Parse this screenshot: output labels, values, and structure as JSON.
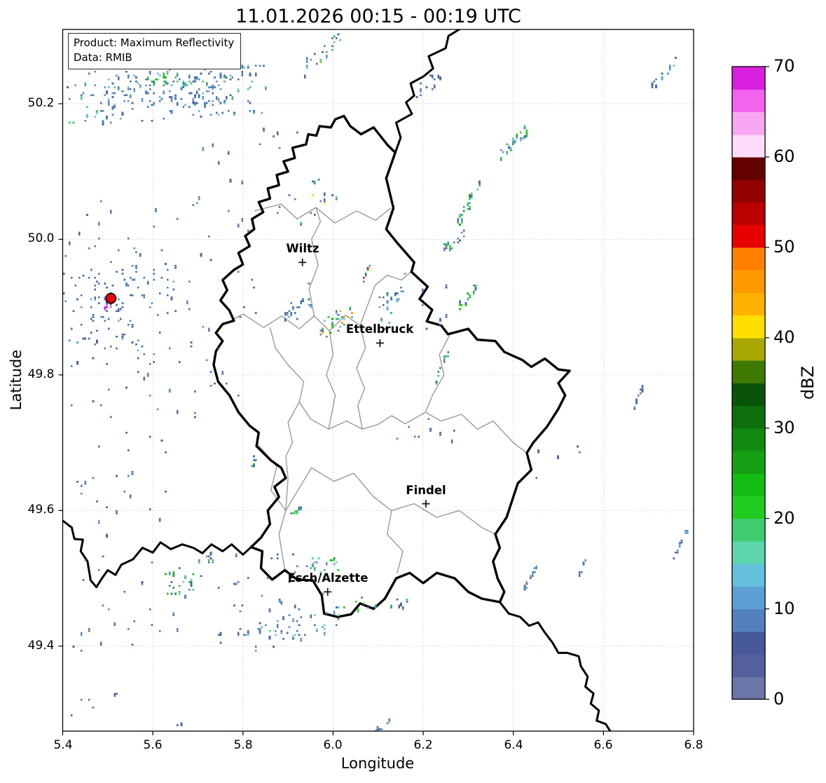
{
  "header": {
    "title": "11.01.2026 00:15 - 00:19 UTC"
  },
  "annotation": {
    "line1": "Product: Maximum Reflectivity",
    "line2": "Data: RMIB"
  },
  "axes": {
    "xlabel": "Longitude",
    "ylabel": "Latitude",
    "x_ticks": [
      "5.4",
      "5.6",
      "5.8",
      "6.0",
      "6.2",
      "6.4",
      "6.6",
      "6.8"
    ],
    "y_ticks": [
      "50.2",
      "50.0",
      "49.8",
      "49.6",
      "49.4"
    ],
    "extent": {
      "lon_min": 5.4,
      "lon_max": 6.8,
      "lat_min": 49.2746,
      "lat_max": 50.3096
    },
    "grid_color": "#c9c9c9"
  },
  "colorbar": {
    "label": "dBZ",
    "ticks": [
      "0",
      "10",
      "20",
      "30",
      "40",
      "50",
      "60",
      "70"
    ],
    "min": 0,
    "max": 70,
    "step": 2.5,
    "colors_bottom_to_top": [
      "#6b76a8",
      "#545f9e",
      "#47599b",
      "#5381bd",
      "#5c9fd2",
      "#65c0de",
      "#5dd6ab",
      "#3fcb6e",
      "#20cc20",
      "#12bc12",
      "#16a016",
      "#128a12",
      "#0c6e0c",
      "#0a540a",
      "#3e7a00",
      "#a8a804",
      "#ffdf00",
      "#ffb300",
      "#ff9900",
      "#ff8000",
      "#e60000",
      "#bb0000",
      "#920000",
      "#650000",
      "#fcdcf9",
      "#f8a8f2",
      "#f263ee",
      "#d81fde"
    ]
  },
  "cities": [
    {
      "name": "Wiltz",
      "lon": 5.932,
      "lat": 49.966
    },
    {
      "name": "Ettelbruck",
      "lon": 6.104,
      "lat": 49.847
    },
    {
      "name": "Findel",
      "lon": 6.206,
      "lat": 49.61
    },
    {
      "name": "Esch/Alzette",
      "lon": 5.988,
      "lat": 49.48
    }
  ],
  "radar_site": {
    "lon": 5.507,
    "lat": 49.913,
    "marker_color": "#e8000b",
    "edge_color": "#000000"
  },
  "chart_data": {
    "type": "heatmap",
    "description": "Weather radar maximum reflectivity (dBZ) over Luxembourg region; scattered light echoes 0-25 dBZ, isolated cells to 50 dBZ, ground clutter rings around radar site at 5.507E 49.913N",
    "value_unit": "dBZ",
    "value_range": [
      0,
      70
    ],
    "palette": {
      "b": "#4a6fad",
      "B": "#5588c0",
      "s": "#53639d",
      "L": "#5ea7d4",
      "c": "#64c0dd",
      "t": "#5dd6ab",
      "g": "#3acb62",
      "G": "#1ecc1e",
      "d": "#16a316",
      "D": "#0e750e",
      "y": "#ffdf00",
      "o": "#ffa700",
      "r": "#e60000",
      "m": "#d81fde",
      "M": "#f060f0"
    },
    "echo_clusters": [
      [
        5.63,
        50.215,
        0.22,
        0.045,
        150,
        "bbbbbbBBBssLLctg",
        0.15
      ],
      [
        5.63,
        50.225,
        0.13,
        0.028,
        80,
        "bbbBBsLc",
        0.1
      ],
      [
        5.585,
        50.236,
        0.045,
        0.012,
        9,
        "GGgd",
        0.3
      ],
      [
        5.975,
        50.275,
        0.04,
        0.035,
        22,
        "bbBBsgGc",
        0.6
      ],
      [
        6.22,
        50.235,
        0.05,
        0.03,
        12,
        "bbBs",
        0.5
      ],
      [
        6.73,
        50.245,
        0.035,
        0.03,
        16,
        "bbBBLs",
        0.8
      ],
      [
        6.4,
        50.145,
        0.03,
        0.027,
        26,
        "GGdgbBLc",
        0.7
      ],
      [
        6.3,
        50.057,
        0.025,
        0.04,
        26,
        "bBLGgdc",
        0.8
      ],
      [
        6.265,
        49.998,
        0.03,
        0.025,
        20,
        "bbBLsG",
        0.6
      ],
      [
        6.295,
        49.917,
        0.018,
        0.022,
        18,
        "GdGbB",
        0.7
      ],
      [
        5.62,
        49.9,
        0.21,
        0.16,
        90,
        "bbbbssBB",
        0
      ],
      [
        5.52,
        49.62,
        0.11,
        0.1,
        25,
        "bbssB",
        0
      ],
      [
        5.8,
        50.1,
        0.12,
        0.07,
        18,
        "bbsB",
        0.1
      ],
      [
        5.955,
        50.06,
        0.06,
        0.05,
        16,
        "bbBsgy",
        0.4
      ],
      [
        5.92,
        49.905,
        0.035,
        0.04,
        20,
        "bbBsL",
        0.5
      ],
      [
        6.005,
        49.88,
        0.035,
        0.03,
        26,
        "bBLGgdoc",
        0.5
      ],
      [
        6.073,
        49.955,
        0.008,
        0.018,
        8,
        "rGdbB",
        0.8
      ],
      [
        6.13,
        49.91,
        0.03,
        0.05,
        22,
        "bbBLcgs",
        0.4
      ],
      [
        6.23,
        49.9,
        0.04,
        0.05,
        8,
        "bbs",
        0.2
      ],
      [
        6.24,
        49.815,
        0.012,
        0.025,
        12,
        "bBLGg",
        0.85
      ],
      [
        6.2,
        49.715,
        0.07,
        0.03,
        9,
        "bbsB",
        0.3
      ],
      [
        5.824,
        49.676,
        0.008,
        0.012,
        6,
        "bGB",
        0.5
      ],
      [
        5.917,
        49.601,
        0.012,
        0.008,
        9,
        "GGgdbL",
        0.6
      ],
      [
        5.7,
        49.47,
        0.28,
        0.075,
        60,
        "bbbbssBB",
        0.1
      ],
      [
        5.655,
        49.495,
        0.035,
        0.022,
        22,
        "GgdtbBL",
        0.2
      ],
      [
        5.72,
        49.532,
        0.02,
        0.012,
        8,
        "GbBs",
        0.3
      ],
      [
        5.99,
        49.523,
        0.055,
        0.012,
        18,
        "GgtbBLd",
        0.1
      ],
      [
        6.09,
        49.465,
        0.09,
        0.012,
        16,
        "bBGgs",
        0.2
      ],
      [
        5.91,
        49.43,
        0.105,
        0.042,
        45,
        "bbBBLcts",
        0.45
      ],
      [
        5.55,
        49.31,
        0.18,
        0.025,
        10,
        "bbs",
        0
      ],
      [
        6.11,
        49.285,
        0.018,
        0.012,
        8,
        "bBs",
        0.6
      ],
      [
        6.675,
        49.768,
        0.012,
        0.025,
        13,
        "bbBs",
        0.85
      ],
      [
        6.435,
        49.502,
        0.014,
        0.02,
        14,
        "bBLLs",
        0.85
      ],
      [
        6.55,
        49.515,
        0.008,
        0.015,
        6,
        "bBs",
        0.85
      ],
      [
        6.77,
        49.555,
        0.016,
        0.025,
        12,
        "bBLs",
        0.85
      ],
      [
        6.5,
        49.68,
        0.05,
        0.04,
        5,
        "bbs",
        0.3
      ],
      [
        5.5,
        49.904,
        0.007,
        0.005,
        10,
        "mmmM",
        0.2
      ]
    ],
    "radar_rings": {
      "center": [
        5.507,
        49.913
      ],
      "radii": [
        0.015,
        0.028,
        0.047,
        0.065,
        0.085,
        0.105,
        0.125,
        0.143
      ],
      "counts": [
        8,
        12,
        14,
        16,
        18,
        16,
        14,
        12
      ],
      "colors": "bbbbBBsL"
    }
  },
  "map_layers": {
    "country_border_color": "#000000",
    "district_border_color": "#999999",
    "luxembourg": [
      6.024,
      50.182,
      6.038,
      50.167,
      6.062,
      50.155,
      6.09,
      50.165,
      6.121,
      50.139,
      6.138,
      50.128,
      6.118,
      50.09,
      6.134,
      50.046,
      6.118,
      50.015,
      6.142,
      49.995,
      6.18,
      49.966,
      6.174,
      49.952,
      6.21,
      49.93,
      6.192,
      49.912,
      6.22,
      49.896,
      6.208,
      49.879,
      6.24,
      49.873,
      6.255,
      49.86,
      6.3,
      49.868,
      6.32,
      49.852,
      6.36,
      49.85,
      6.38,
      49.834,
      6.42,
      49.822,
      6.44,
      49.812,
      6.47,
      49.824,
      6.5,
      49.808,
      6.525,
      49.806,
      6.5,
      49.788,
      6.515,
      49.77,
      6.5,
      49.75,
      6.475,
      49.724,
      6.444,
      49.7,
      6.43,
      49.685,
      6.44,
      49.66,
      6.41,
      49.64,
      6.4,
      49.62,
      6.385,
      49.59,
      6.36,
      49.565,
      6.37,
      49.545,
      6.355,
      49.525,
      6.365,
      49.5,
      6.38,
      49.48,
      6.37,
      49.465,
      6.33,
      49.47,
      6.3,
      49.48,
      6.27,
      49.5,
      6.23,
      49.508,
      6.2,
      49.493,
      6.17,
      49.508,
      6.14,
      49.5,
      6.115,
      49.47,
      6.09,
      49.455,
      6.06,
      49.463,
      6.04,
      49.447,
      6.01,
      49.443,
      5.98,
      49.448,
      5.975,
      49.475,
      5.955,
      49.497,
      5.92,
      49.498,
      5.893,
      49.512,
      5.865,
      49.498,
      5.84,
      49.515,
      5.843,
      49.54,
      5.818,
      49.546,
      5.84,
      49.56,
      5.86,
      49.58,
      5.855,
      49.6,
      5.88,
      49.62,
      5.87,
      49.635,
      5.895,
      49.648,
      5.885,
      49.663,
      5.862,
      49.674,
      5.83,
      49.695,
      5.835,
      49.715,
      5.815,
      49.725,
      5.79,
      49.745,
      5.77,
      49.77,
      5.745,
      49.79,
      5.735,
      49.815,
      5.74,
      49.835,
      5.755,
      49.85,
      5.74,
      49.862,
      5.755,
      49.875,
      5.78,
      49.88,
      5.77,
      49.895,
      5.75,
      49.91,
      5.765,
      49.925,
      5.755,
      49.94,
      5.78,
      49.955,
      5.8,
      49.963,
      5.79,
      49.98,
      5.815,
      49.99,
      5.805,
      50.005,
      5.825,
      50.015,
      5.82,
      50.03,
      5.845,
      50.04,
      5.835,
      50.055,
      5.86,
      50.06,
      5.855,
      50.075,
      5.88,
      50.08,
      5.875,
      50.095,
      5.9,
      50.1,
      5.89,
      50.115,
      5.915,
      50.12,
      5.91,
      50.135,
      5.94,
      50.14,
      5.945,
      50.155,
      5.963,
      50.153,
      5.97,
      50.167,
      5.995,
      50.165,
      6.005,
      50.177,
      6.024,
      50.182
    ],
    "neighbor_borders": [
      [
        6.138,
        50.128,
        6.15,
        50.15,
        6.14,
        50.172,
        6.175,
        50.185,
        6.162,
        50.202,
        6.18,
        50.212,
        6.172,
        50.23,
        6.2,
        50.24,
        6.222,
        50.252,
        6.212,
        50.27,
        6.25,
        50.282,
        6.256,
        50.3,
        6.28,
        50.3096
      ],
      [
        5.4,
        49.585,
        5.42,
        49.575,
        5.426,
        49.558,
        5.445,
        49.557,
        5.44,
        49.54,
        5.455,
        49.525,
        5.462,
        49.497,
        5.475,
        49.487,
        5.487,
        49.5,
        5.5,
        49.512,
        5.517,
        49.505,
        5.53,
        49.52,
        5.556,
        49.528,
        5.577,
        49.545,
        5.6,
        49.538,
        5.617,
        49.553,
        5.64,
        49.543,
        5.665,
        49.55,
        5.69,
        49.545,
        5.71,
        49.537,
        5.73,
        49.55,
        5.755,
        49.54,
        5.775,
        49.55,
        5.8,
        49.535,
        5.818,
        49.546
      ],
      [
        6.37,
        49.465,
        6.39,
        49.448,
        6.415,
        49.443,
        6.435,
        49.43,
        6.455,
        49.435,
        6.47,
        49.42,
        6.487,
        49.405,
        6.5,
        49.39,
        6.52,
        49.39,
        6.545,
        49.385,
        6.55,
        49.37,
        6.565,
        49.355,
        6.56,
        49.34,
        6.578,
        49.33,
        6.572,
        49.315,
        6.59,
        49.305,
        6.585,
        49.29,
        6.605,
        49.285,
        6.615,
        49.2746
      ]
    ],
    "districts": [
      [
        5.826,
        50.042,
        5.885,
        50.052,
        5.92,
        50.03,
        5.962,
        50.047,
        6.004,
        50.024,
        6.052,
        50.042,
        6.094,
        50.028,
        6.128,
        50.046
      ],
      [
        5.752,
        49.872,
        5.8,
        49.89,
        5.846,
        49.87,
        5.886,
        49.887,
        5.925,
        49.868,
        5.958,
        49.887,
        5.992,
        49.865,
        6.028,
        49.888,
        6.06,
        49.873,
        6.093,
        49.932,
        6.12,
        49.947,
        6.152,
        49.94,
        6.177,
        49.955
      ],
      [
        5.958,
        49.887,
        5.947,
        49.927,
        5.967,
        49.962,
        5.952,
        50.0,
        5.972,
        50.026,
        5.962,
        50.047
      ],
      [
        5.86,
        49.87,
        5.872,
        49.84,
        5.9,
        49.815,
        5.935,
        49.79,
        5.925,
        49.76,
        5.95,
        49.735,
        5.99,
        49.72,
        6.03,
        49.732,
        6.065,
        49.72,
        6.1,
        49.727,
        6.13,
        49.74,
        6.16,
        49.728,
        6.205,
        49.745,
        6.24,
        49.732,
        6.285,
        49.742,
        6.32,
        49.72,
        6.355,
        49.732,
        6.4,
        49.7,
        6.43,
        49.685
      ],
      [
        6.06,
        49.873,
        6.072,
        49.84,
        6.052,
        49.81,
        6.07,
        49.78,
        6.055,
        49.755,
        6.065,
        49.72
      ],
      [
        5.992,
        49.865,
        6.0,
        49.83,
        5.985,
        49.8,
        6.005,
        49.77,
        5.99,
        49.72
      ],
      [
        6.205,
        49.745,
        6.222,
        49.772,
        6.246,
        49.8,
        6.236,
        49.83,
        6.258,
        49.858
      ],
      [
        5.83,
        49.7,
        5.875,
        49.665,
        5.862,
        49.63,
        5.895,
        49.6,
        5.88,
        49.565,
        5.893,
        49.512
      ],
      [
        5.925,
        49.76,
        5.9,
        49.73,
        5.91,
        49.7,
        5.895,
        49.68,
        5.9,
        49.648,
        5.895,
        49.6
      ],
      [
        5.895,
        49.6,
        5.952,
        49.663,
        6.002,
        49.643,
        6.046,
        49.655,
        6.09,
        49.62,
        6.13,
        49.6,
        6.18,
        49.61,
        6.23,
        49.59,
        6.28,
        49.6,
        6.33,
        49.575,
        6.36,
        49.565
      ],
      [
        6.13,
        49.6,
        6.12,
        49.565,
        6.155,
        49.54,
        6.142,
        49.508
      ]
    ]
  }
}
